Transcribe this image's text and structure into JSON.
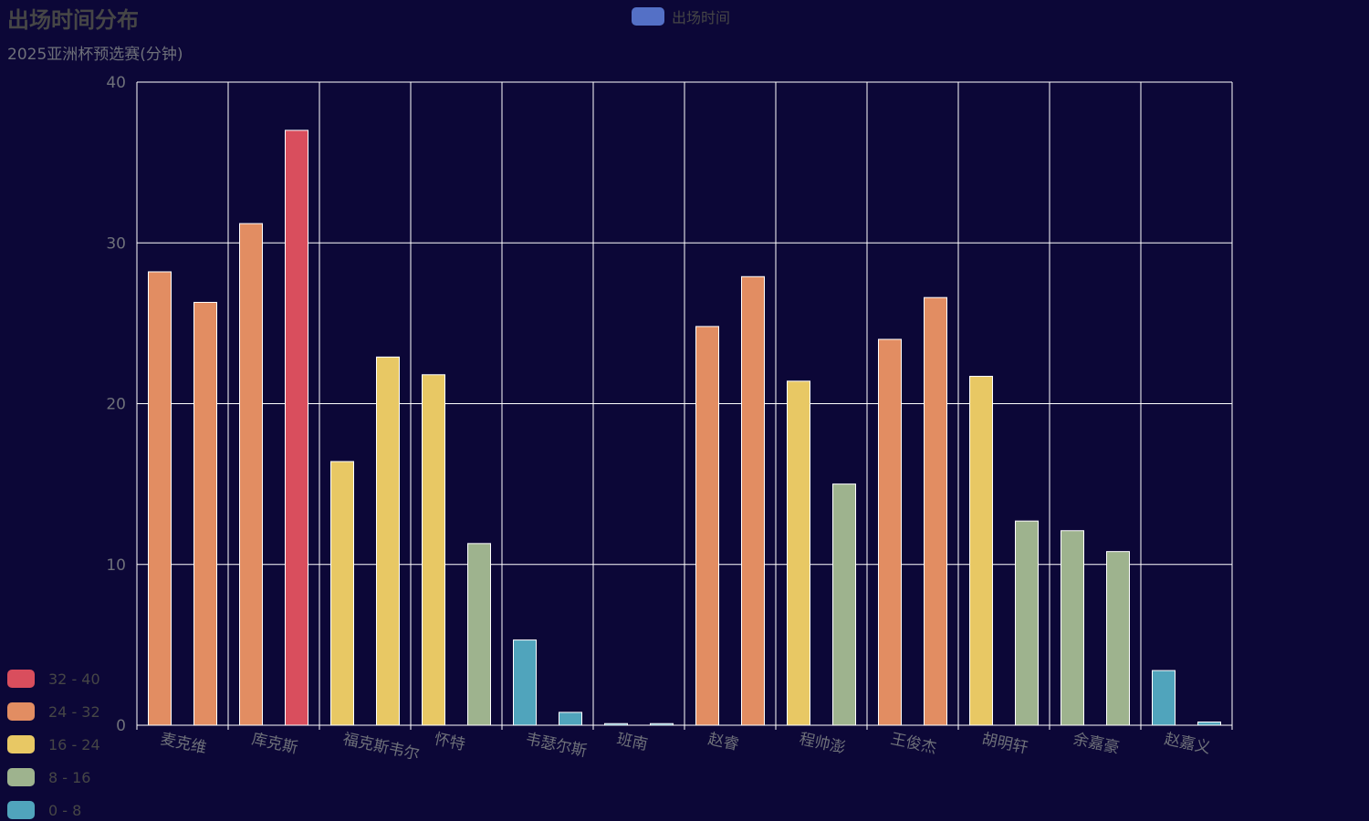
{
  "header": {
    "title": "出场时间分布",
    "subtitle": "2025亚洲杯预选赛(分钟)"
  },
  "legend": {
    "label": "出场时间",
    "color": "#5470c6"
  },
  "visual_map": {
    "pieces": [
      {
        "label": "32 - 40",
        "color": "#d94e5d",
        "min": 32,
        "max": 40
      },
      {
        "label": "24 - 32",
        "color": "#e28d62",
        "min": 24,
        "max": 32
      },
      {
        "label": "16 - 24",
        "color": "#e8c864",
        "min": 16,
        "max": 24
      },
      {
        "label": "8 - 16",
        "color": "#9eb38e",
        "min": 8,
        "max": 16
      },
      {
        "label": "0 - 8",
        "color": "#50a4bc",
        "min": 0,
        "max": 8
      }
    ]
  },
  "chart_data": {
    "type": "bar",
    "title": "出场时间分布",
    "subtitle": "2025亚洲杯预选赛(分钟)",
    "categories": [
      "麦克维",
      "库克斯",
      "福克斯韦尔",
      "怀特",
      "韦瑟尔斯",
      "班南",
      "赵睿",
      "程帅澎",
      "王俊杰",
      "胡明轩",
      "余嘉豪",
      "赵嘉义"
    ],
    "series": [
      {
        "name": "出场时间",
        "values": [
          28.2,
          31.2,
          16.4,
          21.8,
          5.3,
          0.1,
          24.8,
          21.4,
          24.0,
          21.7,
          12.1,
          3.4
        ]
      },
      {
        "name": "出场时间",
        "values": [
          26.3,
          37.0,
          22.9,
          11.3,
          0.8,
          0.1,
          27.9,
          15.0,
          26.6,
          12.7,
          10.8,
          0.2
        ]
      }
    ],
    "y_ticks": [
      "0",
      "10",
      "20",
      "30",
      "40"
    ],
    "ylim": [
      0,
      40
    ],
    "grid": true,
    "legend_position": "top-center",
    "axis_color": "#ffffff"
  }
}
